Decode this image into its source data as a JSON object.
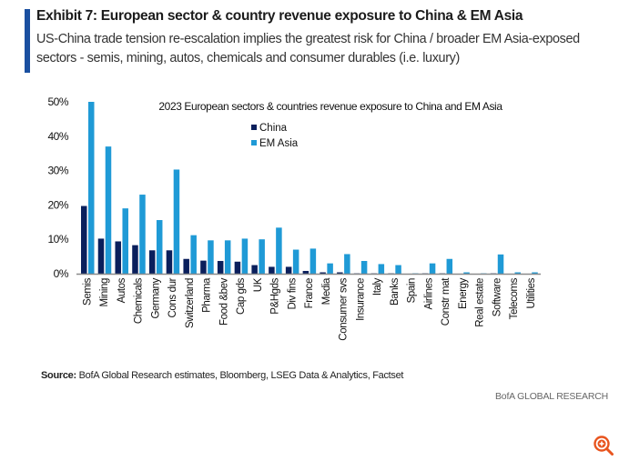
{
  "header": {
    "title": "Exhibit 7: European sector & country revenue exposure to China & EM Asia",
    "subtitle": "US-China trade tension re-escalation implies the greatest risk for China / broader EM Asia-exposed sectors - semis, mining, autos, chemicals and consumer durables (i.e. luxury)"
  },
  "footer": {
    "source_label": "Source:",
    "source_text": " BofA Global Research estimates, Bloomberg, LSEG Data & Analytics, Factset",
    "brand": "BofA GLOBAL RESEARCH",
    "zoom_icon": "zoom-in-icon"
  },
  "colors": {
    "china": "#0a1f5c",
    "em_asia": "#1f9ad6",
    "accent": "#1a4fa0",
    "zoom_icon": "#e8541e"
  },
  "chart_data": {
    "type": "bar",
    "title": "2023 European sectors & countries revenue exposure to China and EM Asia",
    "xlabel": "",
    "ylabel": "",
    "ylim": [
      0,
      50
    ],
    "yticks": [
      "0%",
      "10%",
      "20%",
      "30%",
      "40%",
      "50%"
    ],
    "ytick_values": [
      0,
      10,
      20,
      30,
      40,
      50
    ],
    "grid": false,
    "legend_position": "top-center",
    "categories": [
      "Semis",
      "Mining",
      "Autos",
      "Chemicals",
      "Germany",
      "Cons dur",
      "Switzerland",
      "Pharma",
      "Food &bev",
      "Cap gds",
      "UK",
      "P&Hgds",
      "Div fins",
      "France",
      "Media",
      "Consumer svs",
      "Insurance",
      "Italy",
      "Banks",
      "Spain",
      "Airlines",
      "Constr mat",
      "Energy",
      "Real estate",
      "Software",
      "Telecoms",
      "Utilities"
    ],
    "series": [
      {
        "name": "China",
        "values": [
          19.7,
          10.2,
          9.4,
          8.3,
          6.8,
          6.8,
          4.3,
          3.8,
          3.7,
          3.5,
          2.5,
          2.0,
          2.0,
          0.8,
          0.4,
          0.4,
          0.1,
          0.1,
          0.1,
          0.0,
          0.1,
          0.1,
          0.0,
          0.0,
          0.1,
          0.0,
          0.0
        ]
      },
      {
        "name": "EM Asia",
        "values": [
          50.0,
          37.0,
          19.0,
          23.0,
          15.6,
          30.3,
          11.2,
          9.7,
          9.7,
          10.2,
          10.0,
          13.4,
          7.0,
          7.3,
          3.0,
          5.7,
          3.7,
          2.8,
          2.5,
          0.1,
          3.0,
          4.3,
          0.4,
          0.1,
          5.6,
          0.4,
          0.4
        ]
      }
    ]
  }
}
